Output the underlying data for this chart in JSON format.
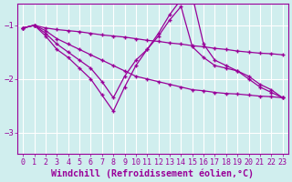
{
  "background_color": "#d0eeee",
  "line_color": "#990099",
  "grid_color": "#ffffff",
  "xlabel": "Windchill (Refroidissement éolien,°C)",
  "xlabel_fontsize": 7.2,
  "tick_fontsize": 6.0,
  "ylim": [
    -3.4,
    -0.6
  ],
  "xlim": [
    -0.5,
    23.5
  ],
  "yticks": [
    -3,
    -2,
    -1
  ],
  "xticks": [
    0,
    1,
    2,
    3,
    4,
    5,
    6,
    7,
    8,
    9,
    10,
    11,
    12,
    13,
    14,
    15,
    16,
    17,
    18,
    19,
    20,
    21,
    22,
    23
  ],
  "lines": [
    {
      "x": [
        0,
        1,
        2,
        3,
        4,
        5,
        6,
        7,
        8,
        9,
        10,
        11,
        12,
        13,
        14,
        15,
        16,
        17,
        18,
        19,
        20,
        21,
        22,
        23
      ],
      "y": [
        -1.05,
        -1.0,
        -1.05,
        -1.08,
        -1.1,
        -1.12,
        -1.15,
        -1.18,
        -1.2,
        -1.22,
        -1.25,
        -1.28,
        -1.3,
        -1.33,
        -1.35,
        -1.38,
        -1.4,
        -1.43,
        -1.45,
        -1.48,
        -1.5,
        -1.52,
        -1.53,
        -1.55
      ]
    },
    {
      "x": [
        0,
        1,
        2,
        3,
        4,
        5,
        6,
        7,
        8,
        9,
        10,
        11,
        12,
        13,
        14,
        15,
        16,
        17,
        18,
        19,
        20,
        21,
        22,
        23
      ],
      "y": [
        -1.05,
        -1.0,
        -1.1,
        -1.25,
        -1.35,
        -1.45,
        -1.55,
        -1.65,
        -1.75,
        -1.85,
        -1.95,
        -2.0,
        -2.05,
        -2.1,
        -2.15,
        -2.2,
        -2.22,
        -2.25,
        -2.27,
        -2.28,
        -2.3,
        -2.32,
        -2.33,
        -2.35
      ]
    },
    {
      "x": [
        0,
        1,
        2,
        3,
        4,
        5,
        6,
        7,
        8,
        9,
        10,
        11,
        12,
        13,
        14,
        15,
        16,
        17,
        18,
        19,
        20,
        21,
        22,
        23
      ],
      "y": [
        -1.05,
        -1.0,
        -1.2,
        -1.45,
        -1.6,
        -1.8,
        -2.0,
        -2.3,
        -2.6,
        -2.15,
        -1.75,
        -1.45,
        -1.15,
        -0.8,
        -0.52,
        -0.45,
        -1.35,
        -1.65,
        -1.75,
        -1.85,
        -2.0,
        -2.15,
        -2.25,
        -2.35
      ]
    },
    {
      "x": [
        0,
        1,
        2,
        3,
        4,
        5,
        6,
        7,
        8,
        9,
        10,
        11,
        12,
        13,
        14,
        15,
        16,
        17,
        18,
        19,
        20,
        21,
        22,
        23
      ],
      "y": [
        -1.05,
        -1.0,
        -1.15,
        -1.35,
        -1.5,
        -1.65,
        -1.8,
        -2.05,
        -2.35,
        -1.95,
        -1.65,
        -1.45,
        -1.2,
        -0.9,
        -0.65,
        -1.4,
        -1.6,
        -1.75,
        -1.8,
        -1.85,
        -1.95,
        -2.1,
        -2.2,
        -2.35
      ]
    }
  ]
}
